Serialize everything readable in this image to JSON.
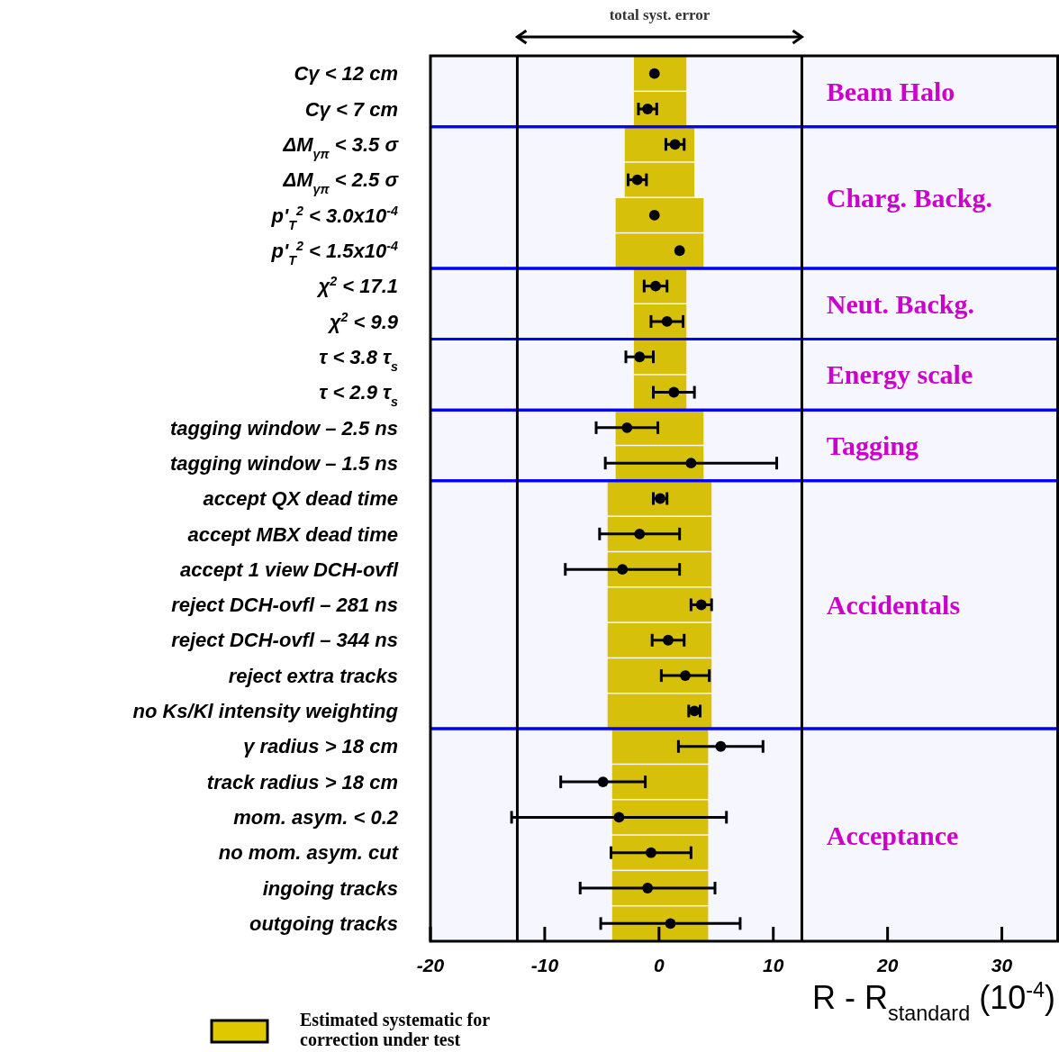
{
  "chart_data": {
    "type": "bar",
    "orientation": "horizontal",
    "xlabel": "R - R$_{standard}$ (10$^{-4}$)",
    "categories": [
      "Cγ < 12 cm",
      "Cγ < 7 cm",
      "ΔM$_{γπ}$ < 3.5 σ",
      "ΔM$_{γπ}$ < 2.5 σ",
      "p'$_{T}$$^{2}$ < 3.0x10$^{-4}$",
      "p'$_{T}$$^{2}$ < 1.5x10$^{-4}$",
      "χ$^{2}$ < 17.1",
      "χ$^{2}$ < 9.9",
      "τ < 3.8 τ$_{s}$",
      "τ < 2.9 τ$_{s}$",
      "tagging window – 2.5 ns",
      "tagging window – 1.5 ns",
      "accept QX dead time",
      "accept MBX dead time",
      "accept 1 view DCH-ovfl",
      "reject DCH-ovfl – 281 ns",
      "reject DCH-ovfl – 344 ns",
      "reject extra tracks",
      "no Ks/Kl intensity weighting",
      "γ radius > 18 cm",
      "track radius > 18 cm",
      "mom. asym. < 0.2",
      "no mom. asym. cut",
      "ingoing tracks",
      "outgoing tracks"
    ],
    "series": [
      {
        "name": "Estimated systematic for correction under test",
        "color": "#dfc800",
        "base": [
          -2.2,
          -2.2,
          -3.0,
          -3.0,
          -3.8,
          -3.8,
          -2.2,
          -2.2,
          -2.2,
          -2.2,
          -3.8,
          -3.8,
          -4.5,
          -4.5,
          -4.5,
          -4.5,
          -4.5,
          -4.5,
          -4.5,
          -4.1,
          -4.1,
          -4.1,
          -4.1,
          -4.1,
          -4.1
        ],
        "values": [
          4.6,
          4.6,
          6.1,
          6.1,
          7.7,
          7.7,
          4.6,
          4.6,
          4.6,
          4.6,
          7.7,
          7.7,
          9.1,
          9.1,
          9.1,
          9.1,
          9.1,
          9.1,
          9.1,
          8.4,
          8.4,
          8.4,
          8.4,
          8.4,
          8.4
        ]
      },
      {
        "type": "scatter",
        "color": "#000000",
        "x": [
          "Cγ < 12 cm",
          "Cγ < 7 cm",
          "ΔM$_{γπ}$ < 3.5 σ",
          "ΔM$_{γπ}$ < 2.5 σ",
          "p'$_{T}$$^{2}$ < 3.0x10$^{-4}$",
          "p'$_{T}$$^{2}$ < 1.5x10$^{-4}$",
          "χ$^{2}$ < 17.1",
          "χ$^{2}$ < 9.9",
          "τ < 3.8 τ$_{s}$",
          "τ < 2.9 τ$_{s}$",
          "tagging window – 2.5 ns",
          "tagging window – 1.5 ns",
          "accept QX dead time",
          "accept MBX dead time",
          "accept 1 view DCH-ovfl",
          "reject DCH-ovfl – 281 ns",
          "reject DCH-ovfl – 344 ns",
          "reject extra tracks",
          "no Ks/Kl intensity weighting",
          "γ radius > 18 cm",
          "track radius > 18 cm",
          "mom. asym. < 0.2",
          "no mom. asym. cut",
          "ingoing tracks",
          "outgoing tracks"
        ],
        "values": [
          -0.4,
          -1.0,
          1.4,
          -1.9,
          -0.4,
          1.8,
          -0.3,
          0.7,
          -1.7,
          1.3,
          -2.8,
          2.8,
          0.1,
          -1.7,
          -3.2,
          3.7,
          0.8,
          2.3,
          3.1,
          5.4,
          -4.9,
          -3.5,
          -0.7,
          -1.0,
          1.0
        ],
        "errors": [
          null,
          0.8,
          0.8,
          0.8,
          null,
          null,
          1.0,
          1.4,
          1.2,
          1.8,
          2.7,
          7.5,
          0.6,
          3.5,
          5.0,
          0.9,
          1.4,
          2.1,
          0.5,
          3.7,
          3.7,
          9.4,
          3.5,
          5.9,
          6.1
        ]
      }
    ],
    "marker": "circle",
    "xlim": [
      -20,
      35
    ],
    "xticks": [
      -20,
      -10,
      0,
      10,
      20,
      30
    ],
    "ref_lines": [
      {
        "axis": "x",
        "value": -12.4,
        "color": "#000000"
      },
      {
        "axis": "x",
        "value": 12.5,
        "color": "#000000"
      }
    ],
    "bands": [
      {
        "axis": "y",
        "from": "Cγ < 12 cm",
        "to": "Cγ < 7 cm",
        "label": "Beam Halo",
        "color": "#0000ff"
      },
      {
        "axis": "y",
        "from": "ΔM$_{γπ}$ < 3.5 σ",
        "to": "p'$_{T}$$^{2}$ < 1.5x10$^{-4}$",
        "label": "Charg. Backg.",
        "color": "#0000ff"
      },
      {
        "axis": "y",
        "from": "χ$^{2}$ < 17.1",
        "to": "χ$^{2}$ < 9.9",
        "label": "Neut. Backg.",
        "color": "#0000ff"
      },
      {
        "axis": "y",
        "from": "τ < 3.8 τ$_{s}$",
        "to": "τ < 2.9 τ$_{s}$",
        "label": "Energy scale",
        "color": "#0000ff"
      },
      {
        "axis": "y",
        "from": "tagging window – 2.5 ns",
        "to": "tagging window – 1.5 ns",
        "label": "Tagging",
        "color": "#0000ff"
      },
      {
        "axis": "y",
        "from": "accept QX dead time",
        "to": "no Ks/Kl intensity weighting",
        "label": "Accidentals",
        "color": "#0000ff"
      },
      {
        "axis": "y",
        "from": "γ radius > 18 cm",
        "to": "outgoing tracks",
        "label": "Acceptance",
        "color": "#0000ff"
      }
    ],
    "annotations": [
      "total syst. error"
    ],
    "legend": "bottom left"
  }
}
